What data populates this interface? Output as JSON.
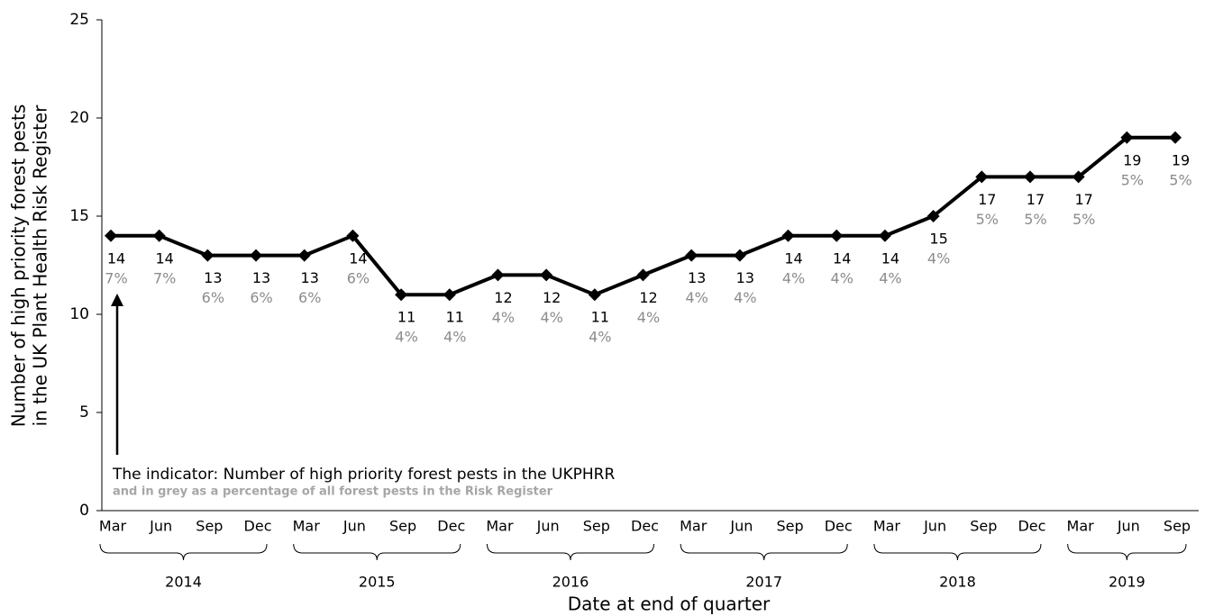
{
  "chart_data": {
    "type": "line",
    "y_label": [
      "Number of high priority forest pests",
      "in the UK Plant Health Risk Register"
    ],
    "x_label": "Date at end of quarter",
    "annotation": "The indicator: Number of high priority forest pests in the UKPHRR",
    "annotation_sub": "and in grey as a percentage of all forest pests in the Risk Register",
    "categories": [
      "Mar",
      "Jun",
      "Sep",
      "Dec",
      "Mar",
      "Jun",
      "Sep",
      "Dec",
      "Mar",
      "Jun",
      "Sep",
      "Dec",
      "Mar",
      "Jun",
      "Sep",
      "Dec",
      "Mar",
      "Jun",
      "Sep",
      "Dec",
      "Mar",
      "Jun",
      "Sep"
    ],
    "years": [
      "2014",
      "2014",
      "2014",
      "2014",
      "2015",
      "2015",
      "2015",
      "2015",
      "2016",
      "2016",
      "2016",
      "2016",
      "2017",
      "2017",
      "2017",
      "2017",
      "2018",
      "2018",
      "2018",
      "2018",
      "2019",
      "2019",
      "2019"
    ],
    "series": [
      {
        "name": "Number of high priority forest pests",
        "color": "#000000",
        "values": [
          14,
          14,
          13,
          13,
          13,
          14,
          11,
          11,
          12,
          12,
          11,
          12,
          13,
          13,
          14,
          14,
          14,
          15,
          17,
          17,
          17,
          19,
          19
        ]
      }
    ],
    "percent_labels": [
      "7%",
      "7%",
      "6%",
      "6%",
      "6%",
      "6%",
      "4%",
      "4%",
      "4%",
      "4%",
      "4%",
      "4%",
      "4%",
      "4%",
      "4%",
      "4%",
      "4%",
      "4%",
      "5%",
      "5%",
      "5%",
      "5%",
      "5%"
    ],
    "ylim": [
      0,
      25
    ],
    "yticks": [
      0,
      5,
      10,
      15,
      20,
      25
    ]
  }
}
